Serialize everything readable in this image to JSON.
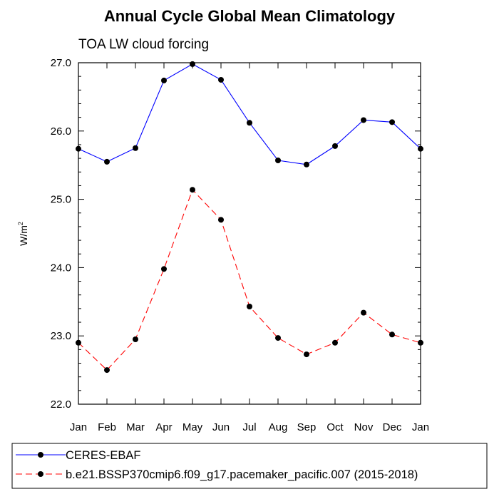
{
  "chart_data": {
    "type": "line",
    "title": "Annual Cycle Global Mean Climatology",
    "subtitle": "TOA LW cloud forcing",
    "ylabel": "W/m",
    "ylabel_sup": "2",
    "xlabel": "",
    "categories": [
      "Jan",
      "Feb",
      "Mar",
      "Apr",
      "May",
      "Jun",
      "Jul",
      "Aug",
      "Sep",
      "Oct",
      "Nov",
      "Dec",
      "Jan"
    ],
    "ylim": [
      22.0,
      27.0
    ],
    "yticks": [
      "22.0",
      "23.0",
      "24.0",
      "25.0",
      "26.0",
      "27.0"
    ],
    "grid": false,
    "legend_position": "bottom",
    "series": [
      {
        "name": "CERES-EBAF",
        "color": "#0000ff",
        "dash": "solid",
        "marker": "filled-circle",
        "values": [
          25.74,
          25.55,
          25.75,
          26.74,
          26.98,
          26.75,
          26.12,
          25.57,
          25.51,
          25.78,
          26.16,
          26.13,
          25.74
        ]
      },
      {
        "name": "b.e21.BSSP370cmip6.f09_g17.pacemaker_pacific.007 (2015-2018)",
        "color": "#ff0000",
        "dash": "dashed",
        "marker": "filled-circle",
        "values": [
          22.9,
          22.5,
          22.95,
          23.98,
          25.14,
          24.7,
          23.43,
          22.97,
          22.73,
          22.9,
          23.34,
          23.02,
          22.9
        ]
      }
    ]
  }
}
